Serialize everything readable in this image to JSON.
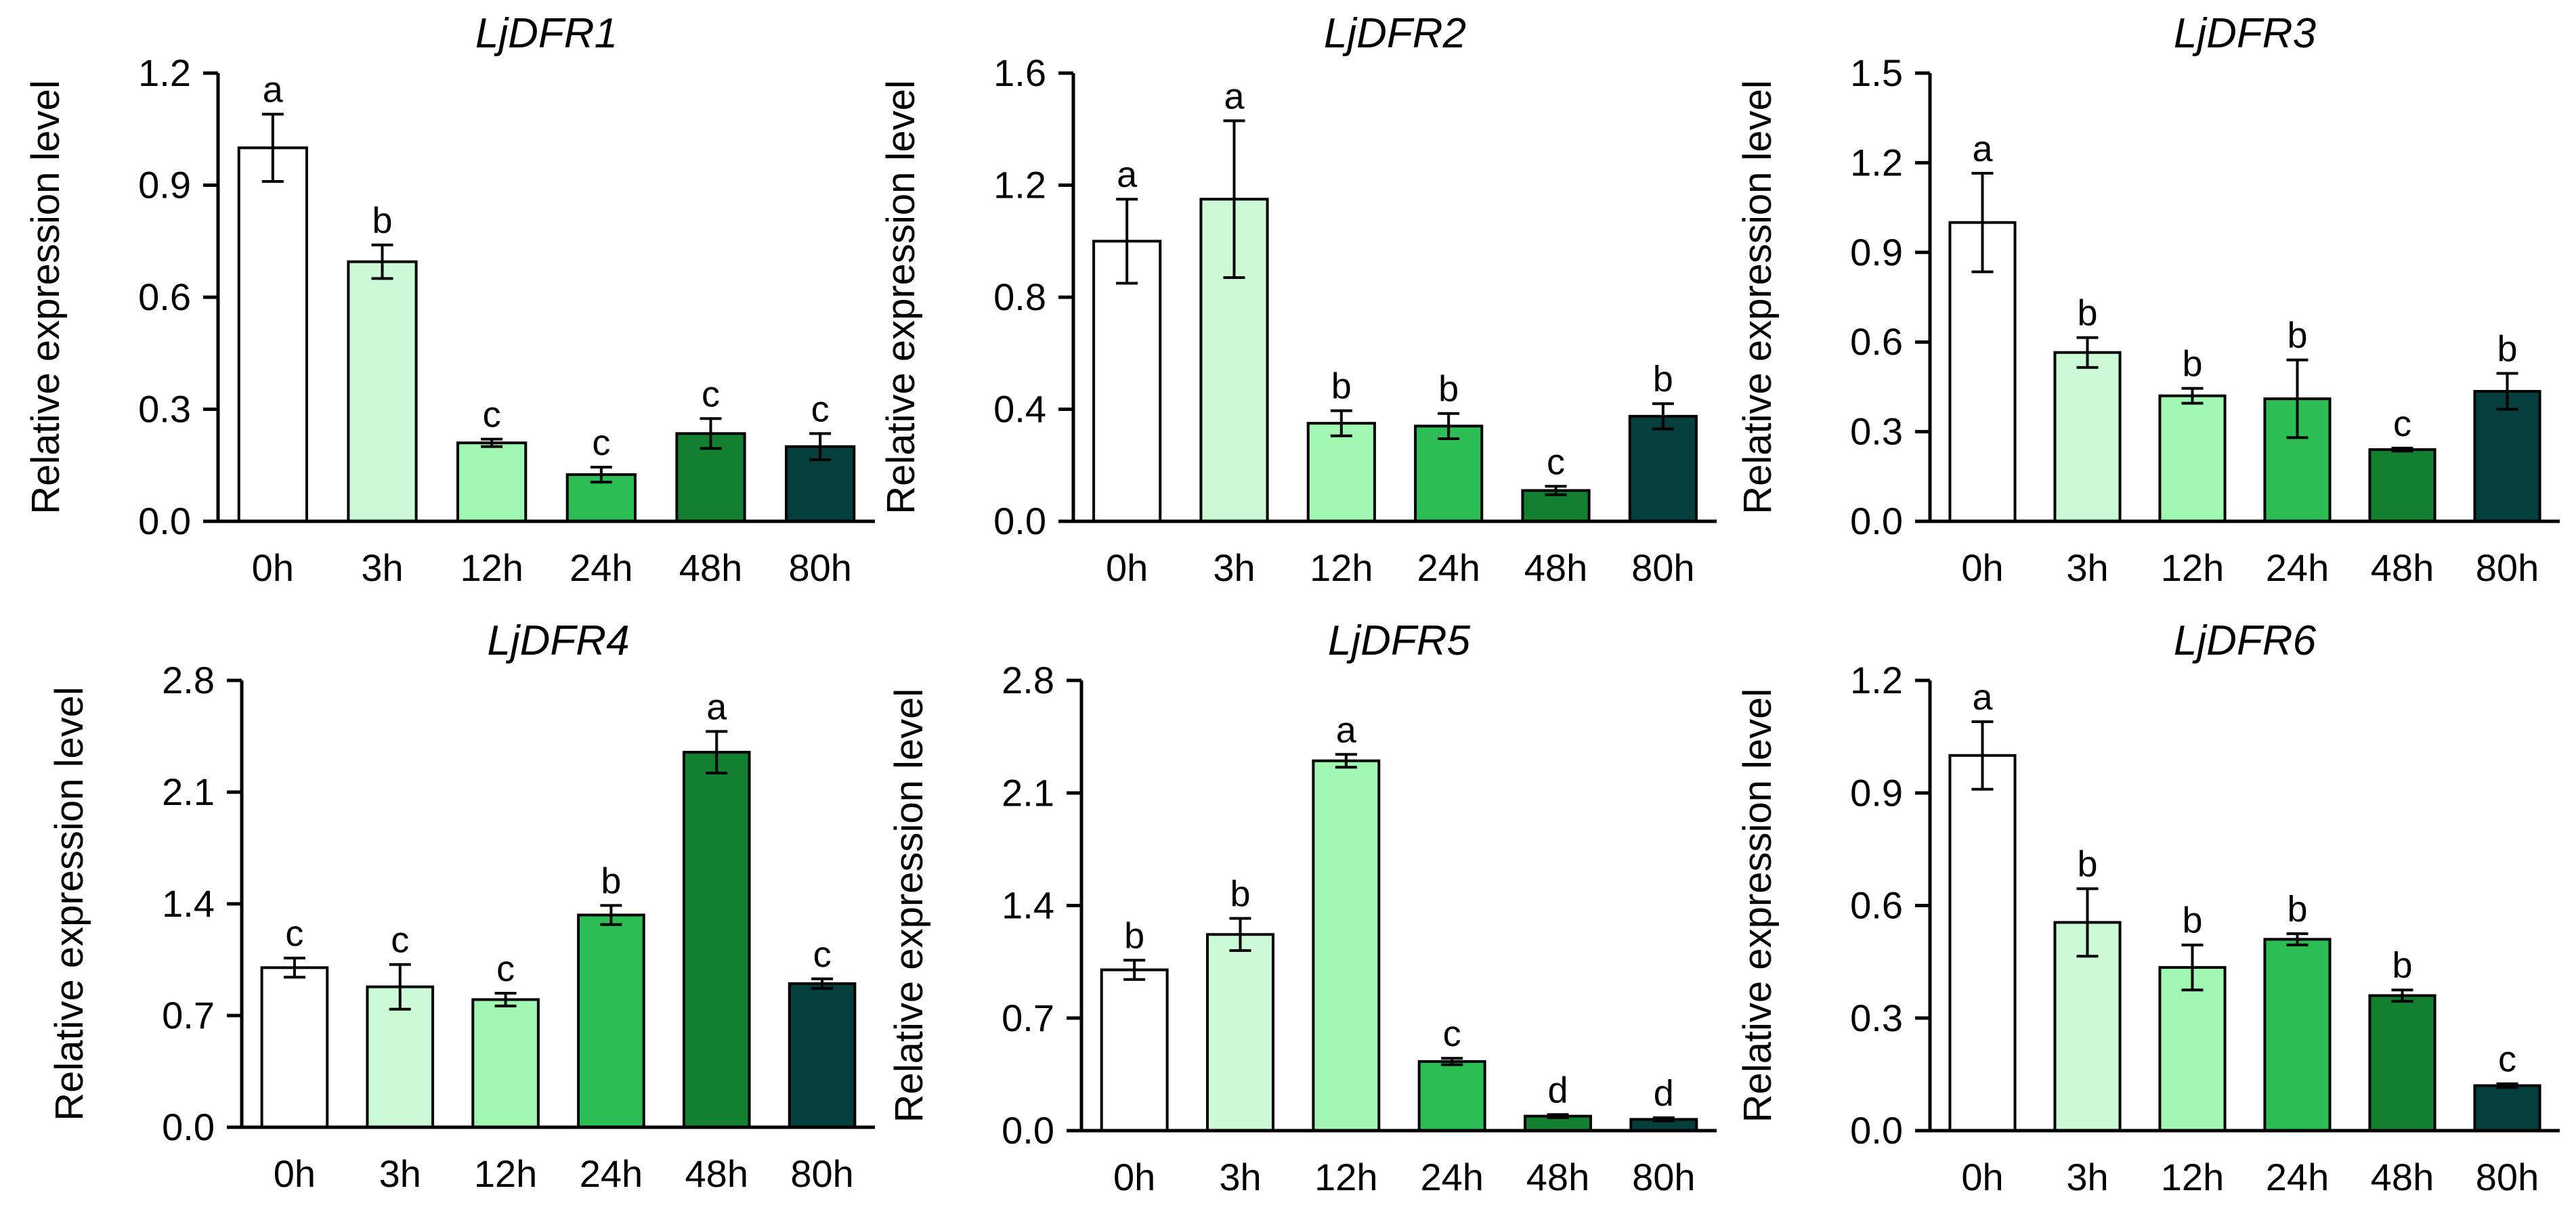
{
  "figure": {
    "categories": [
      "0h",
      "3h",
      "12h",
      "24h",
      "48h",
      "80h"
    ],
    "ylabel": "Relative expression level",
    "colors": [
      "#ffffff",
      "#ccfad7",
      "#9ff7b1",
      "#2cbe54",
      "#138031",
      "#043e3d"
    ]
  },
  "chart_data": [
    {
      "type": "bar",
      "title": "LjDFR1",
      "xlabel": "",
      "ylabel": "Relative expression level",
      "categories": [
        "0h",
        "3h",
        "12h",
        "24h",
        "48h",
        "80h"
      ],
      "values": [
        1.0,
        0.695,
        0.21,
        0.125,
        0.235,
        0.2
      ],
      "errors": [
        0.09,
        0.045,
        0.01,
        0.02,
        0.04,
        0.035
      ],
      "letters": [
        "a",
        "b",
        "c",
        "c",
        "c",
        "c"
      ],
      "ylim": [
        0,
        1.2
      ],
      "yticks": [
        "0.0",
        "0.3",
        "0.6",
        "0.9",
        "1.2"
      ]
    },
    {
      "type": "bar",
      "title": "LjDFR2",
      "xlabel": "",
      "ylabel": "Relative expression level",
      "categories": [
        "0h",
        "3h",
        "12h",
        "24h",
        "48h",
        "80h"
      ],
      "values": [
        1.0,
        1.15,
        0.35,
        0.34,
        0.11,
        0.375
      ],
      "errors": [
        0.15,
        0.28,
        0.045,
        0.045,
        0.015,
        0.045
      ],
      "letters": [
        "a",
        "a",
        "b",
        "b",
        "c",
        "b"
      ],
      "ylim": [
        0,
        1.6
      ],
      "yticks": [
        "0.0",
        "0.4",
        "0.8",
        "1.2",
        "1.6"
      ]
    },
    {
      "type": "bar",
      "title": "LjDFR3",
      "xlabel": "",
      "ylabel": "Relative expression level",
      "categories": [
        "0h",
        "3h",
        "12h",
        "24h",
        "48h",
        "80h"
      ],
      "values": [
        1.0,
        0.565,
        0.42,
        0.41,
        0.24,
        0.435
      ],
      "errors": [
        0.165,
        0.05,
        0.025,
        0.13,
        0.005,
        0.06
      ],
      "letters": [
        "a",
        "b",
        "b",
        "b",
        "c",
        "b"
      ],
      "ylim": [
        0,
        1.5
      ],
      "yticks": [
        "0.0",
        "0.3",
        "0.6",
        "0.9",
        "1.2",
        "1.5"
      ]
    },
    {
      "type": "bar",
      "title": "LjDFR4",
      "xlabel": "",
      "ylabel": "Relative expression level",
      "categories": [
        "0h",
        "3h",
        "12h",
        "24h",
        "48h",
        "80h"
      ],
      "values": [
        1.0,
        0.88,
        0.8,
        1.33,
        2.35,
        0.9
      ],
      "errors": [
        0.06,
        0.14,
        0.04,
        0.06,
        0.13,
        0.03
      ],
      "letters": [
        "c",
        "c",
        "c",
        "b",
        "a",
        "c"
      ],
      "ylim": [
        0,
        2.8
      ],
      "yticks": [
        "0.0",
        "0.7",
        "1.4",
        "2.1",
        "2.8"
      ]
    },
    {
      "type": "bar",
      "title": "LjDFR5",
      "xlabel": "",
      "ylabel": "Relative expression level",
      "categories": [
        "0h",
        "3h",
        "12h",
        "24h",
        "48h",
        "80h"
      ],
      "values": [
        1.0,
        1.22,
        2.3,
        0.43,
        0.09,
        0.07
      ],
      "errors": [
        0.06,
        0.1,
        0.04,
        0.02,
        0.01,
        0.01
      ],
      "letters": [
        "b",
        "b",
        "a",
        "c",
        "d",
        "d"
      ],
      "ylim": [
        0,
        2.8
      ],
      "yticks": [
        "0.0",
        "0.7",
        "1.4",
        "2.1",
        "2.8"
      ]
    },
    {
      "type": "bar",
      "title": "LjDFR6",
      "xlabel": "",
      "ylabel": "Relative expression level",
      "categories": [
        "0h",
        "3h",
        "12h",
        "24h",
        "48h",
        "80h"
      ],
      "values": [
        1.0,
        0.555,
        0.435,
        0.51,
        0.36,
        0.12
      ],
      "errors": [
        0.09,
        0.09,
        0.06,
        0.015,
        0.015,
        0.005
      ],
      "letters": [
        "a",
        "b",
        "b",
        "b",
        "b",
        "c"
      ],
      "ylim": [
        0,
        1.2
      ],
      "yticks": [
        "0.0",
        "0.3",
        "0.6",
        "0.9",
        "1.2"
      ]
    }
  ]
}
